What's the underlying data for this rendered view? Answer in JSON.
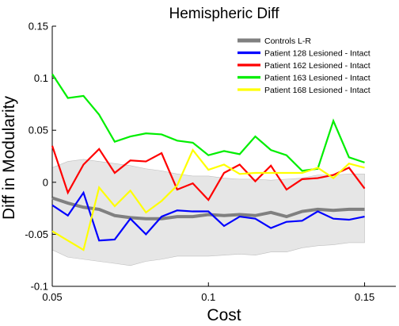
{
  "chart_data": {
    "type": "line",
    "title": "Hemispheric Diff",
    "xlabel": "Cost",
    "ylabel": "Diff in Modularity",
    "xlim": [
      0.05,
      0.16
    ],
    "ylim": [
      -0.1,
      0.15
    ],
    "x_ticks": [
      0.05,
      0.1,
      0.15
    ],
    "x_tick_labels": [
      "0.05",
      "0.1",
      "0.15"
    ],
    "y_ticks": [
      -0.1,
      -0.05,
      0,
      0.05,
      0.1,
      0.15
    ],
    "y_tick_labels": [
      "-0.1",
      "-0.05",
      "0",
      "0.05",
      "0.1",
      "0.15"
    ],
    "grid": false,
    "legend_position": "top-right",
    "x": [
      0.05,
      0.055,
      0.06,
      0.065,
      0.07,
      0.075,
      0.08,
      0.085,
      0.09,
      0.095,
      0.1,
      0.105,
      0.11,
      0.115,
      0.12,
      0.125,
      0.13,
      0.135,
      0.14,
      0.145,
      0.15
    ],
    "band": {
      "upper": [
        0.014,
        0.02,
        0.022,
        0.02,
        0.018,
        0.016,
        0.013,
        0.011,
        0.008,
        0.006,
        0.006,
        0.004,
        0.003,
        0.003,
        0.002,
        0.003,
        0.004,
        0.007,
        0.007,
        0.008,
        0.008
      ],
      "lower": [
        -0.065,
        -0.072,
        -0.074,
        -0.076,
        -0.078,
        -0.08,
        -0.076,
        -0.074,
        -0.071,
        -0.071,
        -0.071,
        -0.07,
        -0.069,
        -0.07,
        -0.067,
        -0.067,
        -0.063,
        -0.061,
        -0.06,
        -0.058,
        -0.058
      ],
      "color": "#e6e6e6"
    },
    "series": [
      {
        "name": "Controls L-R",
        "color": "#808080",
        "width": 4,
        "values": [
          -0.015,
          -0.02,
          -0.024,
          -0.026,
          -0.032,
          -0.034,
          -0.035,
          -0.035,
          -0.033,
          -0.033,
          -0.031,
          -0.032,
          -0.031,
          -0.032,
          -0.029,
          -0.033,
          -0.028,
          -0.026,
          -0.027,
          -0.026,
          -0.026
        ]
      },
      {
        "name": "Patient 128 Lesioned - Intact",
        "color": "#0000ff",
        "width": 2.2,
        "values": [
          -0.022,
          -0.032,
          -0.01,
          -0.056,
          -0.055,
          -0.035,
          -0.05,
          -0.033,
          -0.027,
          -0.028,
          -0.028,
          -0.042,
          -0.033,
          -0.035,
          -0.044,
          -0.038,
          -0.037,
          -0.028,
          -0.035,
          -0.036,
          -0.033
        ]
      },
      {
        "name": "Patient 162 Lesioned - Intact",
        "color": "#ff0000",
        "width": 2.2,
        "values": [
          0.035,
          -0.01,
          0.017,
          0.032,
          0.009,
          0.021,
          0.02,
          0.028,
          -0.007,
          -0.001,
          -0.017,
          0.009,
          0.017,
          0.001,
          0.016,
          -0.007,
          0.003,
          0.004,
          0.007,
          0.014,
          -0.006
        ]
      },
      {
        "name": "Patient 163 Lesioned - Intact",
        "color": "#00ee00",
        "width": 2.2,
        "values": [
          0.104,
          0.081,
          0.083,
          0.065,
          0.039,
          0.044,
          0.047,
          0.046,
          0.04,
          0.038,
          0.026,
          0.03,
          0.027,
          0.044,
          0.031,
          0.026,
          0.011,
          0.013,
          0.059,
          0.024,
          0.019
        ]
      },
      {
        "name": "Patient 168 Lesioned - Intact",
        "color": "#ffff00",
        "width": 2.2,
        "values": [
          -0.047,
          -0.056,
          -0.065,
          -0.005,
          -0.023,
          -0.008,
          -0.029,
          -0.018,
          -0.003,
          0.031,
          0.012,
          0.017,
          0.008,
          0.009,
          0.009,
          0.009,
          0.009,
          0.014,
          0.004,
          0.018,
          0.014
        ]
      }
    ]
  }
}
